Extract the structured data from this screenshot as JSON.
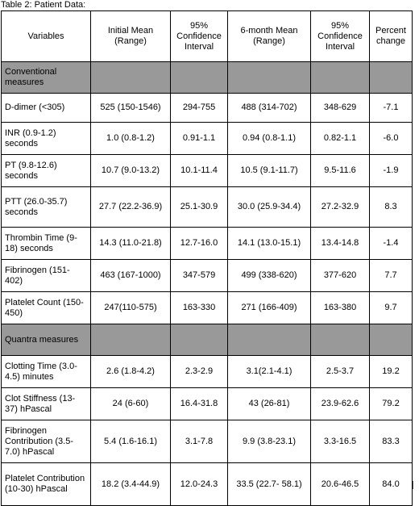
{
  "caption": "Table 2: Patient Data:",
  "headers": [
    "Variables",
    "Initial Mean (Range)",
    "95% Confidence Interval",
    "6-month Mean (Range)",
    "95% Confidence Interval",
    "Percent change"
  ],
  "sections": [
    {
      "title": "Conventional measures",
      "rows": [
        [
          "D-dimer (<305)",
          "525 (150-1546)",
          "294-755",
          "488 (314-702)",
          "348-629",
          "-7.1"
        ],
        [
          "INR (0.9-1.2) seconds",
          "1.0 (0.8-1.2)",
          "0.91-1.1",
          "0.94 (0.8-1.1)",
          "0.82-1.1",
          "-6.0"
        ],
        [
          "PT (9.8-12.6) seconds",
          "10.7 (9.0-13.2)",
          "10.1-11.4",
          "10.5 (9.1-11.7)",
          "9.5-11.6",
          "-1.9"
        ],
        [
          "PTT (26.0-35.7) seconds",
          "27.7 (22.2-36.9)",
          "25.1-30.9",
          "30.0 (25.9-34.4)",
          "27.2-32.9",
          "8.3"
        ],
        [
          "Thrombin Time (9-18) seconds",
          "14.3 (11.0-21.8)",
          "12.7-16.0",
          "14.1 (13.0-15.1)",
          "13.4-14.8",
          "-1.4"
        ],
        [
          "Fibrinogen (151-402)",
          "463 (167-1000)",
          "347-579",
          "499 (338-620)",
          "377-620",
          "7.7"
        ],
        [
          "Platelet Count (150-450)",
          "247(110-575)",
          "163-330",
          "271 (166-409)",
          "163-380",
          "9.7"
        ]
      ]
    },
    {
      "title": "Quantra measures",
      "rows": [
        [
          "Clotting Time (3.0-4.5) minutes",
          "2.6 (1.8-4.2)",
          "2.3-2.9",
          "3.1(2.1-4.1)",
          "2.5-3.7",
          "19.2"
        ],
        [
          "Clot Stiffness (13-37) hPascal",
          "24 (6-60)",
          "16.4-31.8",
          "43 (26-81)",
          "23.9-62.6",
          "79.2"
        ],
        [
          "Fibrinogen Contribution (3.5-7.0) hPascal",
          "5.4 (1.6-16.1)",
          "3.1-7.8",
          "9.9 (3.8-23.1)",
          "3.3-16.5",
          "83.3"
        ],
        [
          "Platelet Contribution (10-30) hPascal",
          "18.2 (3.4-44.9)",
          "12.0-24.3",
          "33.5 (22.7- 58.1)",
          "20.6-46.5",
          "84.0"
        ]
      ]
    }
  ]
}
